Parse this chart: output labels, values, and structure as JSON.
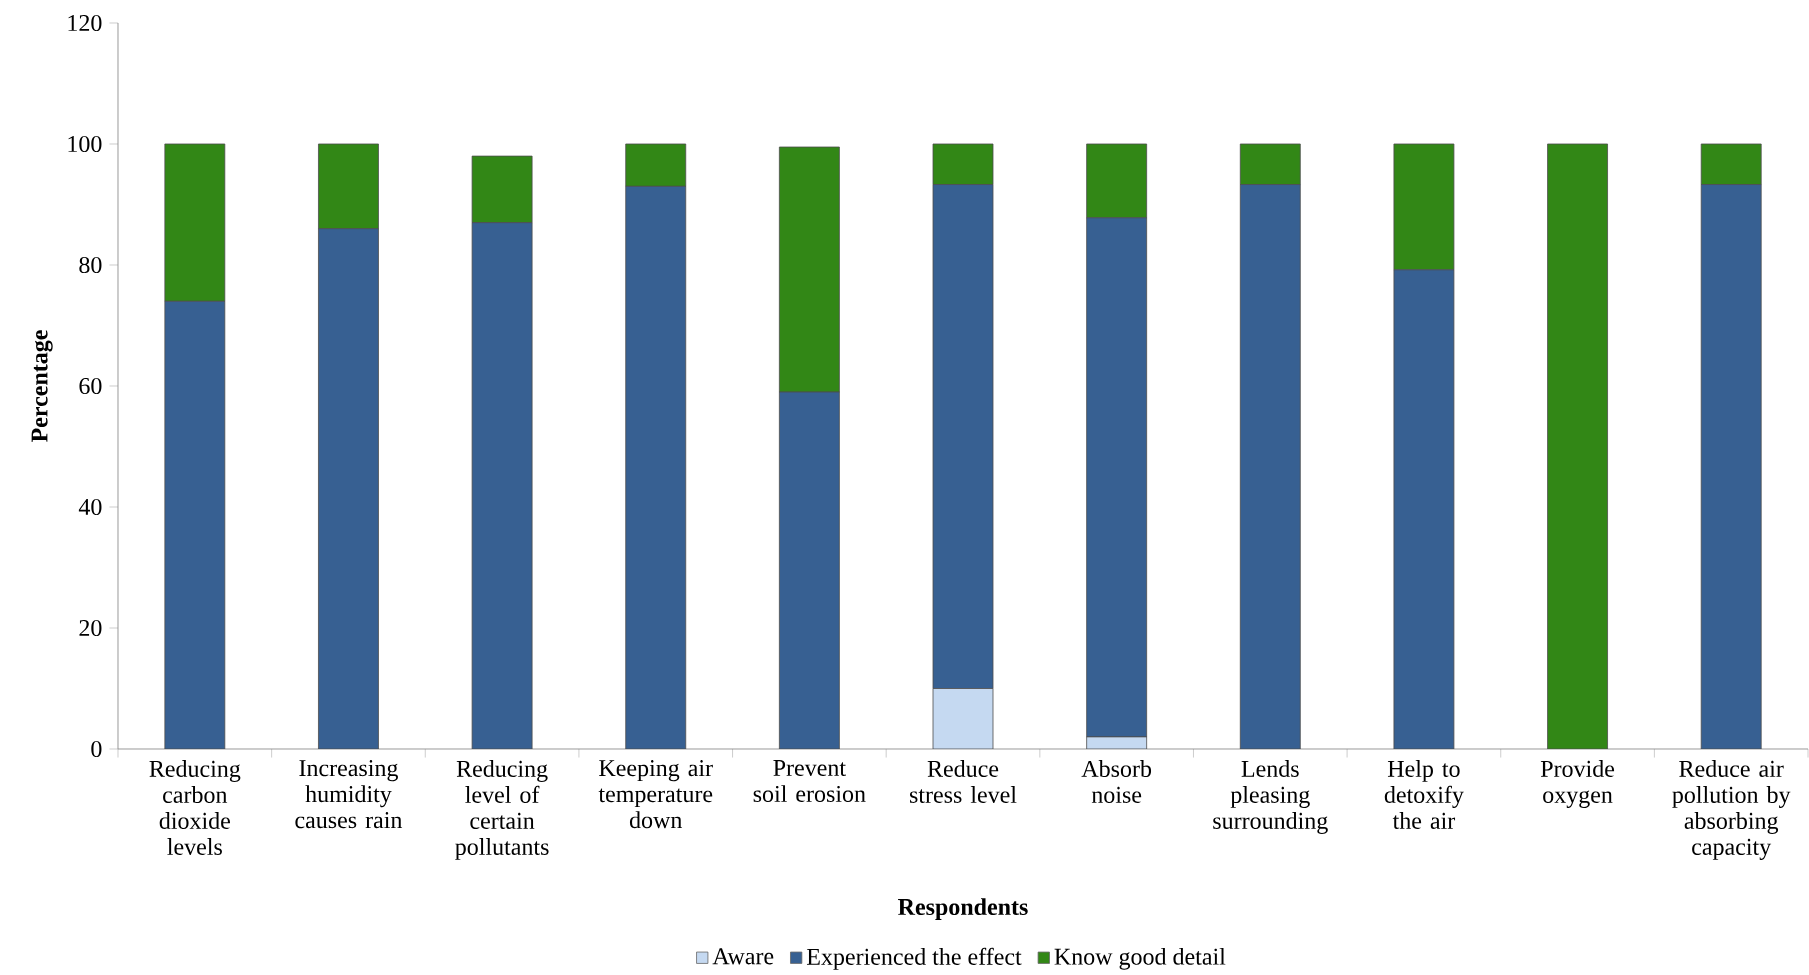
{
  "chart_data": {
    "type": "bar",
    "stacked": true,
    "xlabel": "Respondents",
    "ylabel": "Percentage",
    "categories": [
      "Reducing carbon dioxide levels",
      "Increasing humidity causes rain",
      "Reducing level of certain pollutants",
      "Keeping air temperature down",
      "Prevent soil erosion",
      "Reduce stress level",
      "Absorb noise",
      "Lends pleasing surrounding",
      "Help to detoxify the air",
      "Provide oxygen",
      "Reduce air pollution by absorbing capacity"
    ],
    "series": [
      {
        "name": "Aware",
        "color": "#c5d9f1",
        "values": [
          0,
          0,
          0,
          0,
          0,
          10,
          2,
          0,
          0,
          0,
          0
        ]
      },
      {
        "name": "Experienced the effect",
        "color": "#376092",
        "values": [
          74,
          86,
          87,
          93,
          59,
          83.3,
          85.8,
          93.3,
          79.2,
          0,
          93.3
        ]
      },
      {
        "name": "Know good detail",
        "color": "#328716",
        "values": [
          26,
          14,
          11,
          7,
          40.5,
          6.7,
          12.2,
          6.7,
          20.8,
          100,
          6.7
        ]
      }
    ],
    "ylim": [
      0,
      120
    ],
    "yticks": [
      0,
      20,
      40,
      60,
      80,
      100,
      120
    ],
    "legend": "bottom"
  }
}
